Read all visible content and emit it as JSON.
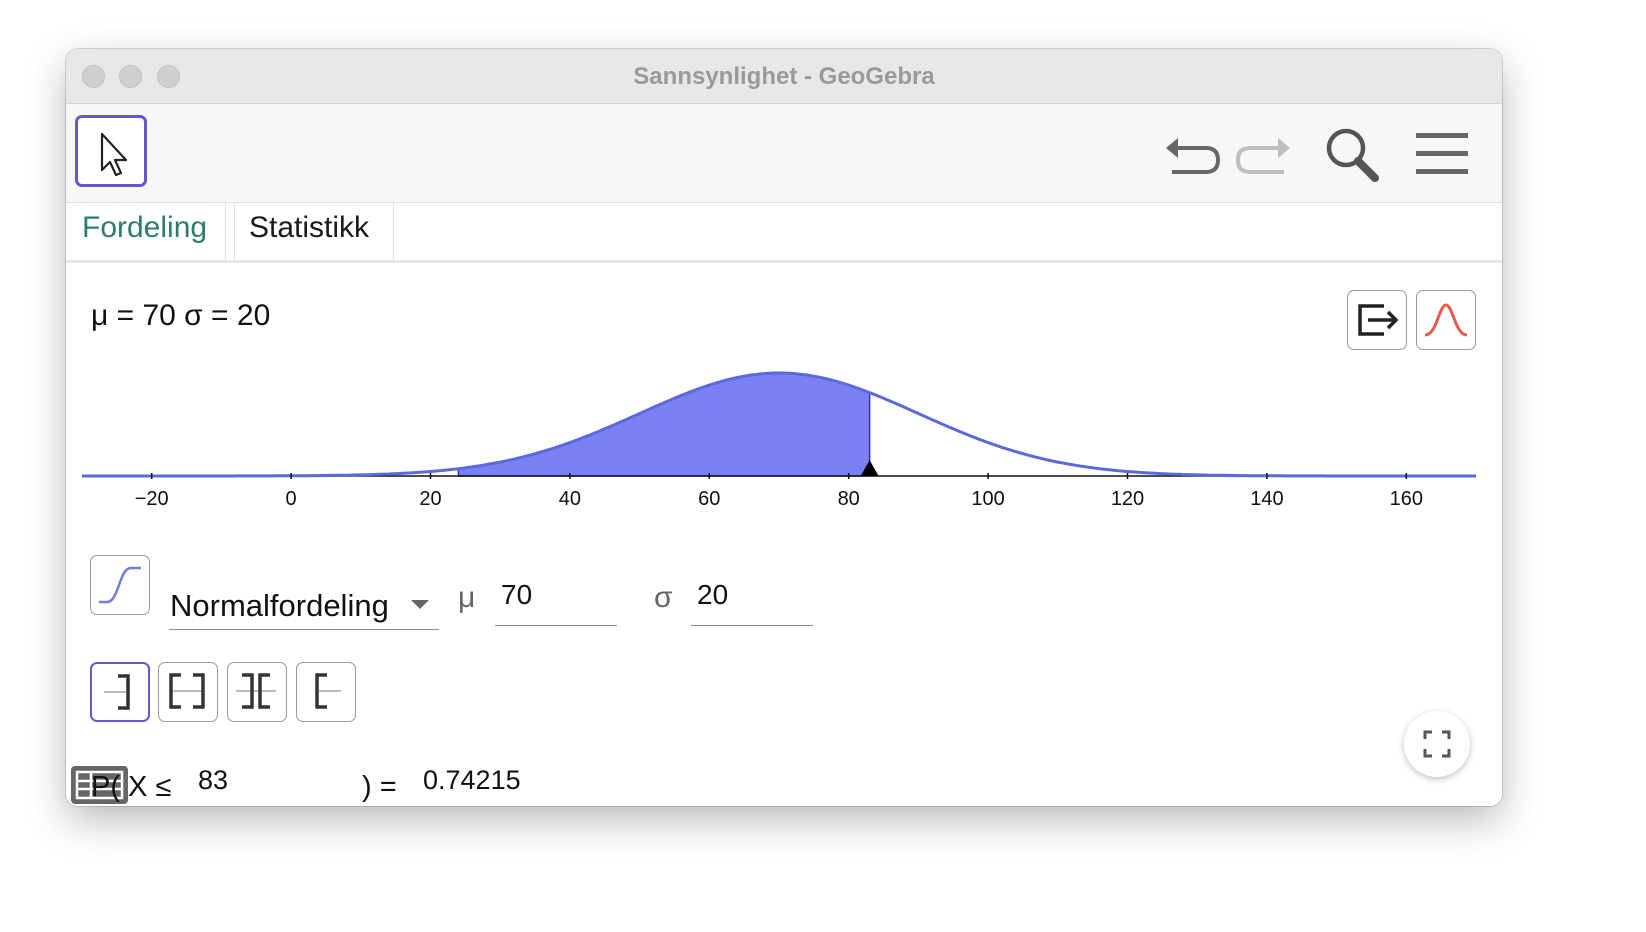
{
  "window": {
    "title": "Sannsynlighet - GeoGebra"
  },
  "toolbar": {
    "move_tool": "arrow-cursor-icon",
    "undo": "undo-icon",
    "redo": "redo-icon",
    "search": "search-icon",
    "menu": "hamburger-menu-icon"
  },
  "tabs": [
    {
      "label": "Fordeling",
      "active": true
    },
    {
      "label": "Statistikk",
      "active": false
    }
  ],
  "distribution": {
    "params_label": "μ = 70 σ = 20",
    "selected": "Normalfordeling",
    "mu_label": "μ",
    "mu_value": "70",
    "sigma_label": "σ",
    "sigma_value": "20",
    "accent_color": "#6557d2",
    "curve_color": "#5a6ad8",
    "fill_color": "#7b80f4"
  },
  "chart_data": {
    "type": "area",
    "distribution": "normal",
    "mu": 70,
    "sigma": 20,
    "x_ticks": [
      "−20",
      "0",
      "20",
      "40",
      "60",
      "80",
      "100",
      "120",
      "140",
      "160"
    ],
    "xlim": [
      -30,
      170
    ],
    "shaded_from": 24,
    "shaded_to": 83,
    "marker_x": 83
  },
  "interval_buttons": [
    {
      "icon": "left-sided-icon",
      "active": true
    },
    {
      "icon": "interval-icon",
      "active": false
    },
    {
      "icon": "two-tailed-icon",
      "active": false
    },
    {
      "icon": "right-sided-icon",
      "active": false
    }
  ],
  "probability": {
    "prefix": "P( X ≤",
    "bound": "83",
    "suffix": ") =",
    "result": "0.74215"
  }
}
